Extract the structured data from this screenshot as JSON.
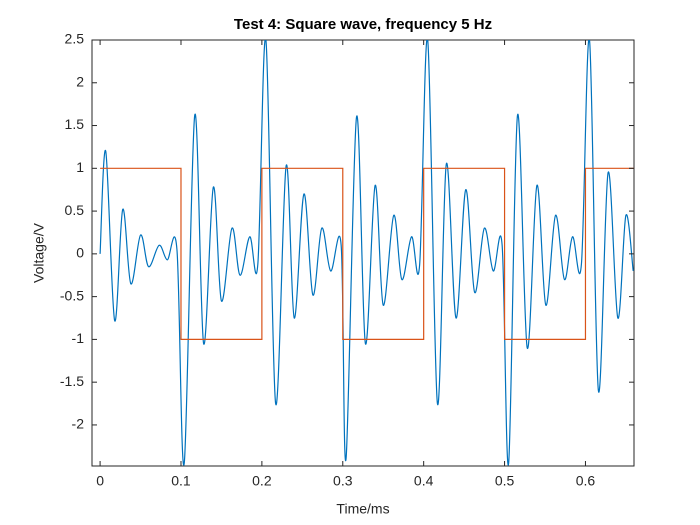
{
  "chart_data": {
    "type": "line",
    "title": "Test 4: Square wave, frequency 5 Hz",
    "x_label": "Time/ms",
    "y_label": "Voltage/V",
    "xlim": [
      -0.01,
      0.66
    ],
    "ylim": [
      -2.48,
      2.5
    ],
    "xticks": [
      0,
      0.1,
      0.2,
      0.3,
      0.4,
      0.5,
      0.6
    ],
    "yticks": [
      -2,
      -1.5,
      -1,
      -0.5,
      0,
      0.5,
      1,
      1.5,
      2,
      2.5
    ],
    "grid": false,
    "series": [
      {
        "color": "#0072bd",
        "smooth": true,
        "x": [
          0,
          0.007,
          0.018,
          0.028,
          0.038,
          0.05,
          0.06,
          0.073,
          0.083,
          0.095,
          0.104,
          0.117,
          0.128,
          0.14,
          0.15,
          0.163,
          0.173,
          0.185,
          0.195,
          0.205,
          0.217,
          0.23,
          0.24,
          0.252,
          0.263,
          0.274,
          0.285,
          0.298,
          0.304,
          0.317,
          0.328,
          0.34,
          0.35,
          0.363,
          0.373,
          0.385,
          0.395,
          0.405,
          0.417,
          0.428,
          0.44,
          0.452,
          0.463,
          0.475,
          0.486,
          0.497,
          0.505,
          0.516,
          0.528,
          0.54,
          0.551,
          0.563,
          0.574,
          0.584,
          0.595,
          0.605,
          0.616,
          0.628,
          0.64,
          0.65,
          0.659
        ],
        "values": [
          0,
          1.2,
          -0.78,
          0.52,
          -0.35,
          0.22,
          -0.15,
          0.1,
          -0.07,
          0.05,
          -2.45,
          1.62,
          -1.05,
          0.78,
          -0.55,
          0.3,
          -0.25,
          0.2,
          -0.12,
          2.5,
          -1.75,
          1.03,
          -0.75,
          0.7,
          -0.48,
          0.3,
          -0.2,
          0.1,
          -2.4,
          1.6,
          -1.05,
          0.8,
          -0.6,
          0.45,
          -0.3,
          0.2,
          -0.13,
          2.5,
          -1.75,
          1.05,
          -0.75,
          0.75,
          -0.45,
          0.3,
          -0.2,
          0.1,
          -2.45,
          1.62,
          -1.1,
          0.8,
          -0.6,
          0.45,
          -0.3,
          0.2,
          -0.12,
          2.5,
          -1.6,
          0.95,
          -0.75,
          0.45,
          -0.2
        ]
      },
      {
        "color": "#d95319",
        "smooth": false,
        "x": [
          0,
          0.1,
          0.1,
          0.2,
          0.2,
          0.3,
          0.3,
          0.4,
          0.4,
          0.5,
          0.5,
          0.6,
          0.6,
          0.66
        ],
        "values": [
          1,
          1,
          -1,
          -1,
          1,
          1,
          -1,
          -1,
          1,
          1,
          -1,
          -1,
          1,
          1
        ]
      }
    ]
  }
}
